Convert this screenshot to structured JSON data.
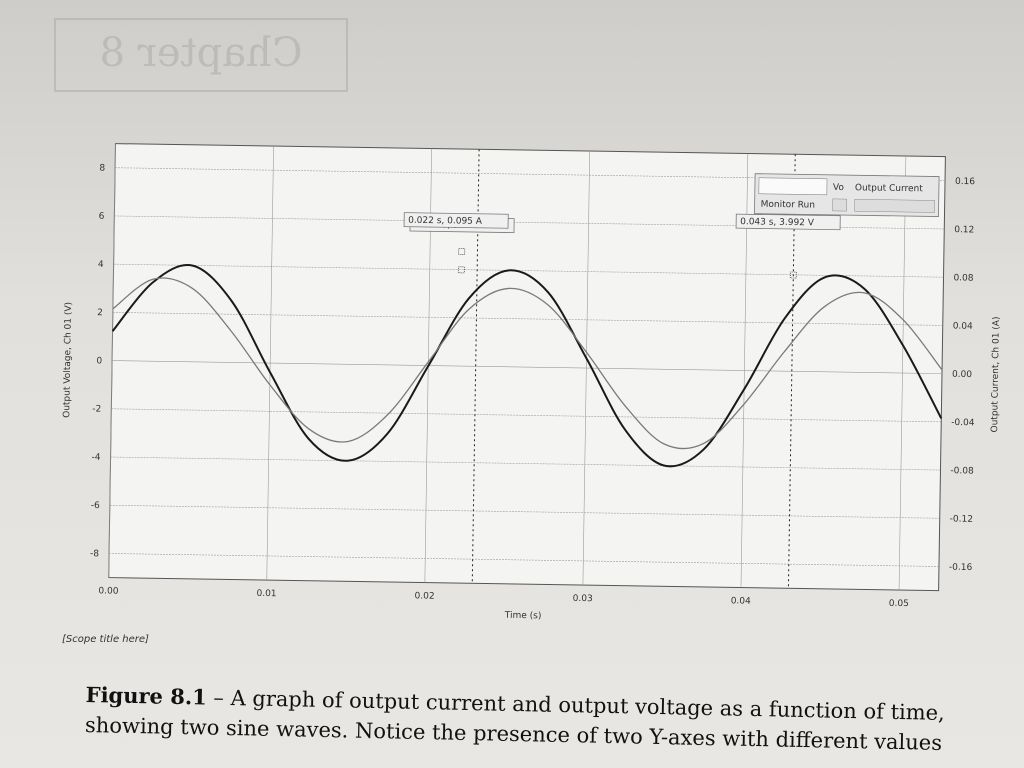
{
  "chart_data": {
    "type": "line",
    "title": "",
    "xlabel": "Time (s)",
    "ylabel_left": "Output Voltage, Ch 01 (V)",
    "ylabel_right": "Output Current, Ch 01 (A)",
    "xlim": [
      0.0,
      0.0525
    ],
    "ylim_left": [
      -9,
      9
    ],
    "ylim_right": [
      -0.18,
      0.18
    ],
    "x_ticks": [
      "0.00",
      "0.01",
      "0.02",
      "0.03",
      "0.04",
      "0.05"
    ],
    "x_tick_values": [
      0.0,
      0.01,
      0.02,
      0.03,
      0.04,
      0.05
    ],
    "y_ticks_left": [
      "8",
      "6",
      "4",
      "2",
      "0",
      "-2",
      "-4",
      "-6",
      "-8"
    ],
    "y_tick_values_left": [
      8,
      6,
      4,
      2,
      0,
      -2,
      -4,
      -6,
      -8
    ],
    "y_ticks_right": [
      "0.16",
      "0.12",
      "0.08",
      "0.04",
      "0.00",
      "-0.04",
      "-0.08",
      "-0.12",
      "-0.16"
    ],
    "y_tick_values_right": [
      0.16,
      0.12,
      0.08,
      0.04,
      0.0,
      -0.04,
      -0.08,
      -0.12,
      -0.16
    ],
    "grid": true,
    "series": [
      {
        "name": "Vo",
        "axis": "left",
        "x": [
          0.0,
          0.0025,
          0.005,
          0.0075,
          0.01,
          0.0125,
          0.015,
          0.0175,
          0.02,
          0.0225,
          0.025,
          0.0275,
          0.03,
          0.0325,
          0.035,
          0.0375,
          0.04,
          0.0425,
          0.045,
          0.0475,
          0.05,
          0.0525
        ],
        "values": [
          1.22,
          3.27,
          3.99,
          2.55,
          -0.38,
          -3.11,
          -4.0,
          -2.84,
          -0.02,
          2.81,
          4.0,
          3.12,
          0.4,
          -2.52,
          -3.99,
          -3.3,
          -0.78,
          2.19,
          3.92,
          3.47,
          1.15,
          -1.86
        ]
      },
      {
        "name": "Output Current",
        "axis": "right",
        "x": [
          0.0,
          0.0025,
          0.005,
          0.0075,
          0.01,
          0.0125,
          0.015,
          0.0175,
          0.02,
          0.0225,
          0.025,
          0.0275,
          0.03,
          0.0325,
          0.035,
          0.0375,
          0.04,
          0.0425,
          0.045,
          0.0475,
          0.05,
          0.0525
        ],
        "values": [
          0.043,
          0.068,
          0.061,
          0.026,
          -0.018,
          -0.054,
          -0.064,
          -0.041,
          0.003,
          0.047,
          0.065,
          0.052,
          0.013,
          -0.031,
          -0.062,
          -0.061,
          -0.028,
          0.016,
          0.054,
          0.066,
          0.044,
          0.003
        ]
      }
    ],
    "annotations": [
      {
        "text": "0.022 s, 3.992 V",
        "x": 0.022,
        "y": 3.992,
        "axis": "left"
      },
      {
        "text": "0.022 s, 0.095 A",
        "x": 0.022,
        "y": 0.095,
        "axis": "right"
      },
      {
        "text": "0.043 s, 3.992 V",
        "x": 0.043,
        "y": 3.992,
        "axis": "left"
      }
    ],
    "cursors_x": [
      0.023,
      0.043
    ],
    "legend_position": "top-right",
    "legend": {
      "items": [
        "Vo",
        "Output Current"
      ],
      "row_label": "Monitor Run"
    }
  },
  "scope_title": "[Scope title here]",
  "chapter_ghost": "Chapter 8",
  "caption": {
    "label": "Figure 8.1",
    "text": " – A graph of output current and output voltage as a function of time, showing two sine waves. Notice the presence of two Y-axes with different values"
  },
  "colors": {
    "voltage_line": "#1a1a1a",
    "current_line": "#7a7a7a",
    "grid": "#9a9a9a",
    "plot_bg": "#f4f4f2"
  }
}
